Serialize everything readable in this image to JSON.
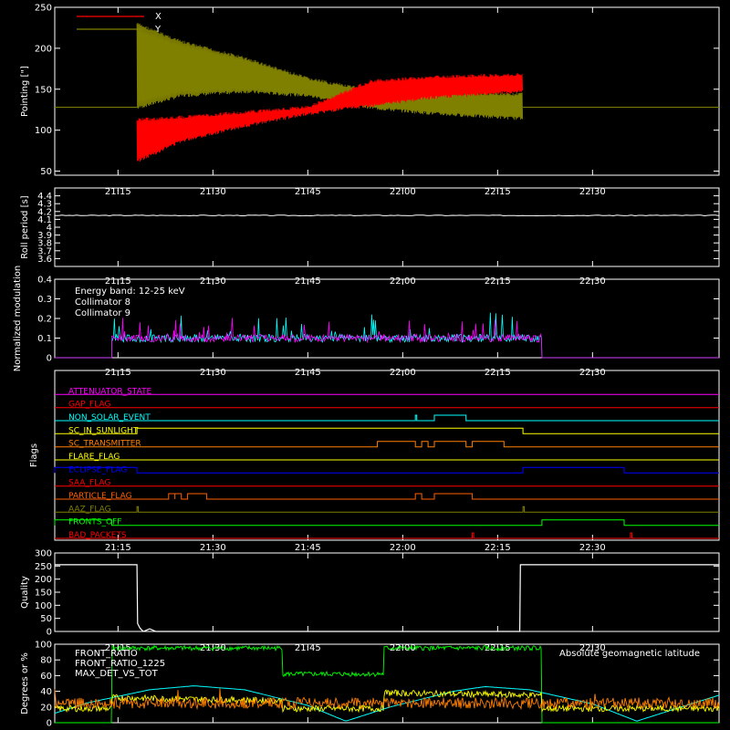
{
  "time_axis": {
    "start_minutes": 1265,
    "end_minutes": 1370,
    "tick_minutes": [
      1275,
      1290,
      1305,
      1320,
      1335,
      1350
    ],
    "tick_labels": [
      "21:15",
      "21:30",
      "21:45",
      "22:00",
      "22:15",
      "22:30"
    ]
  },
  "chart_data": [
    {
      "type": "line",
      "ylabel": "Pointing [\"]",
      "ylim": [
        45,
        250
      ],
      "yticks": [
        50,
        100,
        150,
        200,
        250
      ],
      "legend": [
        {
          "name": "X",
          "color": "#ff0000"
        },
        {
          "name": "Y",
          "color": "#808000"
        }
      ],
      "baseline_value": 128,
      "active_start": "21:18",
      "active_end": "22:19",
      "series": [
        {
          "name": "X",
          "color": "#ff0000",
          "upper": [
            [
              1278.0,
              115
            ],
            [
              1285,
              118
            ],
            [
              1295,
              124
            ],
            [
              1305,
              130
            ],
            [
              1315,
              162
            ],
            [
              1325,
              167
            ],
            [
              1338.5,
              170
            ]
          ],
          "lower": [
            [
              1278.0,
              60
            ],
            [
              1285,
              85
            ],
            [
              1295,
              103
            ],
            [
              1305,
              118
            ],
            [
              1315,
              128
            ],
            [
              1325,
              138
            ],
            [
              1338.5,
              145
            ]
          ]
        },
        {
          "name": "Y",
          "color": "#808000",
          "upper": [
            [
              1278.0,
              232
            ],
            [
              1285,
              210
            ],
            [
              1295,
              190
            ],
            [
              1305,
              165
            ],
            [
              1315,
              150
            ],
            [
              1325,
              148
            ],
            [
              1338.5,
              146
            ]
          ],
          "lower": [
            [
              1278.0,
              125
            ],
            [
              1285,
              140
            ],
            [
              1295,
              145
            ],
            [
              1305,
              140
            ],
            [
              1315,
              125
            ],
            [
              1325,
              118
            ],
            [
              1338.5,
              112
            ]
          ]
        }
      ]
    },
    {
      "type": "line",
      "ylabel": "Roll period [s]",
      "ylim": [
        3.5,
        4.5
      ],
      "yticks": [
        3.6,
        3.7,
        3.8,
        3.9,
        4.0,
        4.1,
        4.2,
        4.3,
        4.4
      ],
      "series": [
        {
          "name": "roll",
          "color": "#ffffff",
          "values": [
            [
              1265,
              4.15
            ],
            [
              1370,
              4.15
            ]
          ]
        }
      ]
    },
    {
      "type": "line",
      "ylabel": "Normalized modulation",
      "ylim": [
        0,
        0.4
      ],
      "yticks": [
        0.0,
        0.1,
        0.2,
        0.3,
        0.4
      ],
      "annotation": "Energy band: 12-25 keV",
      "legend": [
        {
          "name": "Collimator 8",
          "color": "#00ffff"
        },
        {
          "name": "Collimator 9",
          "color": "#ff00ff"
        }
      ],
      "active_start": "21:14",
      "active_end": "22:22",
      "series": [
        {
          "name": "Collimator 8",
          "color": "#00ffff",
          "mean": 0.1
        },
        {
          "name": "Collimator 9",
          "color": "#ff00ff",
          "mean": 0.1
        }
      ]
    },
    {
      "type": "line",
      "ylabel": "Flags",
      "flags": [
        {
          "name": "ATTENUATOR_STATE",
          "color": "#ff00ff",
          "on": []
        },
        {
          "name": "GAP_FLAG",
          "color": "#ff0000",
          "on": []
        },
        {
          "name": "NON_SOLAR_EVENT",
          "color": "#00ffff",
          "on": [
            [
              "22:02",
              "22:02"
            ],
            [
              "22:05",
              "22:10"
            ]
          ]
        },
        {
          "name": "SC_IN_SUNLIGHT",
          "color": "#ffff00",
          "on": [
            [
              "21:18",
              "22:19"
            ]
          ]
        },
        {
          "name": "SC_TRANSMITTER",
          "color": "#ff8000",
          "on": [
            [
              "21:56",
              "22:02"
            ],
            [
              "22:03",
              "22:04"
            ],
            [
              "22:05",
              "22:10"
            ],
            [
              "22:11",
              "22:16"
            ]
          ]
        },
        {
          "name": "FLARE_FLAG",
          "color": "#ffff00",
          "on": []
        },
        {
          "name": "ECLIPSE_FLAG",
          "color": "#0000ff",
          "on": [
            [
              "21:05",
              "21:18"
            ],
            [
              "22:19",
              "22:35"
            ]
          ]
        },
        {
          "name": "SAA_FLAG",
          "color": "#ff0000",
          "on": []
        },
        {
          "name": "PARTICLE_FLAG",
          "color": "#ff6000",
          "on": [
            [
              "21:23",
              "21:24"
            ],
            [
              "21:24",
              "21:25"
            ],
            [
              "21:26",
              "21:29"
            ],
            [
              "22:02",
              "22:03"
            ],
            [
              "22:05",
              "22:11"
            ]
          ]
        },
        {
          "name": "AAZ_FLAG",
          "color": "#808000",
          "on": [
            [
              "21:18",
              "21:18"
            ],
            [
              "22:19",
              "22:19"
            ]
          ]
        },
        {
          "name": "FRONTS_OFF",
          "color": "#00ff00",
          "on": [
            [
              "21:05",
              "21:14"
            ],
            [
              "22:22",
              "22:35"
            ]
          ]
        },
        {
          "name": "BAD_PACKETS",
          "color": "#ff0000",
          "on": [
            [
              "22:11",
              "22:11"
            ],
            [
              "22:36",
              "22:36"
            ]
          ]
        }
      ]
    },
    {
      "type": "line",
      "ylabel": "Quality",
      "ylim": [
        0,
        300
      ],
      "yticks": [
        0,
        50,
        100,
        150,
        200,
        250,
        300
      ],
      "series": [
        {
          "name": "quality",
          "color": "#ffffff",
          "values": [
            [
              1265,
              255
            ],
            [
              1278,
              255
            ],
            [
              1278.1,
              30
            ],
            [
              1278.5,
              12
            ],
            [
              1279,
              0
            ],
            [
              1280,
              10
            ],
            [
              1281,
              0
            ],
            [
              1338.5,
              0
            ],
            [
              1338.6,
              255
            ],
            [
              1370,
              255
            ]
          ]
        }
      ]
    },
    {
      "type": "line",
      "ylabel": "Degrees or %",
      "ylim": [
        0,
        100
      ],
      "yticks": [
        0,
        20,
        40,
        60,
        80,
        100
      ],
      "legend": [
        {
          "name": "FRONT_RATIO",
          "color": "#ffff00"
        },
        {
          "name": "FRONT_RATIO_1225",
          "color": "#00ff00"
        },
        {
          "name": "MAX_DET_VS_TOT",
          "color": "#ff8000"
        },
        {
          "name": "Absolute geomagnetic latitude",
          "color": "#00ffff"
        }
      ],
      "series": [
        {
          "name": "FRONT_RATIO_1225",
          "color": "#00ff00",
          "values": [
            [
              1265,
              0
            ],
            [
              1274,
              0
            ],
            [
              1274,
              95
            ],
            [
              1301,
              95
            ],
            [
              1301,
              62
            ],
            [
              1317,
              62
            ],
            [
              1317,
              95
            ],
            [
              1342,
              95
            ],
            [
              1342,
              0
            ],
            [
              1370,
              0
            ]
          ]
        },
        {
          "name": "FRONT_RATIO",
          "color": "#ffff00",
          "values": [
            [
              1265,
              18
            ],
            [
              1274,
              18
            ],
            [
              1274,
              32
            ],
            [
              1301,
              28
            ],
            [
              1301,
              18
            ],
            [
              1317,
              18
            ],
            [
              1317,
              38
            ],
            [
              1342,
              35
            ],
            [
              1342,
              18
            ],
            [
              1370,
              18
            ]
          ]
        },
        {
          "name": "MAX_DET_VS_TOT",
          "color": "#ff8000",
          "mean": 25
        },
        {
          "name": "Absolute geomagnetic latitude",
          "color": "#00ffff",
          "values": [
            [
              1265,
              12
            ],
            [
              1270,
              25
            ],
            [
              1280,
              42
            ],
            [
              1287,
              47
            ],
            [
              1295,
              42
            ],
            [
              1305,
              22
            ],
            [
              1311,
              2
            ],
            [
              1318,
              20
            ],
            [
              1328,
              40
            ],
            [
              1333,
              46
            ],
            [
              1340,
              42
            ],
            [
              1350,
              24
            ],
            [
              1357,
              2
            ],
            [
              1364,
              20
            ],
            [
              1370,
              35
            ]
          ]
        }
      ]
    }
  ]
}
